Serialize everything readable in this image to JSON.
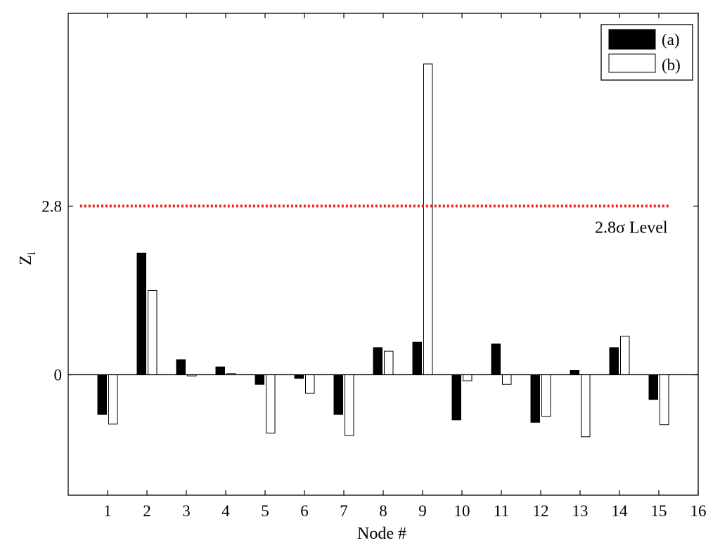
{
  "chart_data": {
    "type": "bar",
    "xlabel": "Node #",
    "ylabel": "Z",
    "ylabel_subscript": "i",
    "x_ticks": [
      "1",
      "2",
      "3",
      "4",
      "5",
      "6",
      "7",
      "8",
      "9",
      "10",
      "11",
      "12",
      "13",
      "14",
      "15",
      "16"
    ],
    "y_ticks": [
      {
        "value": 0,
        "label": "0"
      },
      {
        "value": 2.8,
        "label": "2.8"
      }
    ],
    "xlim": [
      0,
      16
    ],
    "ylim": [
      -2.0,
      6.0
    ],
    "categories": [
      "1",
      "2",
      "3",
      "4",
      "5",
      "6",
      "7",
      "8",
      "9",
      "10",
      "11",
      "12",
      "13",
      "14",
      "15"
    ],
    "series": [
      {
        "name": "(a)",
        "color": "#000000",
        "values": [
          -0.66,
          2.02,
          0.25,
          0.13,
          -0.16,
          -0.06,
          -0.66,
          0.45,
          0.54,
          -0.75,
          0.51,
          -0.79,
          0.07,
          0.45,
          -0.41
        ]
      },
      {
        "name": "(b)",
        "color": "#ffffff",
        "values": [
          -0.82,
          1.4,
          -0.02,
          0.02,
          -0.97,
          -0.31,
          -1.01,
          0.39,
          5.16,
          -0.1,
          -0.16,
          -0.69,
          -1.03,
          0.64,
          -0.83
        ]
      }
    ],
    "threshold": {
      "value": 2.8,
      "label": "2.8σ Level",
      "color": "#e8281e"
    },
    "legend_position": "top-right"
  }
}
